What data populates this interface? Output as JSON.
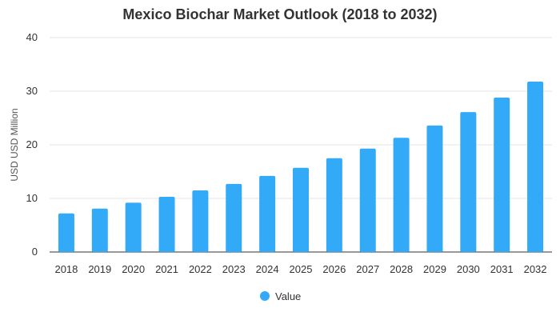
{
  "chart_data": {
    "type": "bar",
    "title": "Mexico Biochar Market Outlook (2018 to 2032)",
    "xlabel": "",
    "ylabel": "USD USD Million",
    "categories": [
      "2018",
      "2019",
      "2020",
      "2021",
      "2022",
      "2023",
      "2024",
      "2025",
      "2026",
      "2027",
      "2028",
      "2029",
      "2030",
      "2031",
      "2032"
    ],
    "series": [
      {
        "name": "Value",
        "values": [
          7.2,
          8.1,
          9.2,
          10.3,
          11.5,
          12.7,
          14.2,
          15.7,
          17.5,
          19.3,
          21.3,
          23.6,
          26.1,
          28.8,
          31.8
        ]
      }
    ],
    "ylim": [
      0,
      40
    ],
    "yticks": [
      0,
      10,
      20,
      30,
      40
    ],
    "grid": true,
    "legend_position": "bottom",
    "colors": {
      "bar": "#33aaf7",
      "grid": "#e6e6e6",
      "axis": "#333333"
    }
  }
}
